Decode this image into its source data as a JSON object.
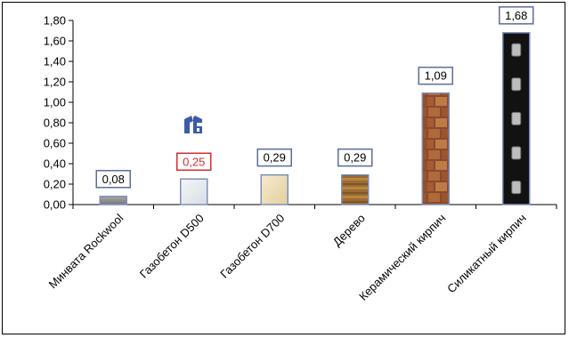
{
  "chart_data": {
    "type": "bar",
    "categories": [
      "Минвата Rockwool",
      "Газобетон D500",
      "Газобетон D700",
      "Дерево",
      "Керамический кирпич",
      "Силикатный кирпич"
    ],
    "values": [
      0.08,
      0.25,
      0.29,
      0.29,
      1.09,
      1.68
    ],
    "value_labels": [
      "0,08",
      "0,25",
      "0,29",
      "0,29",
      "1,09",
      "1,68"
    ],
    "y_ticks": [
      "0,00",
      "0,20",
      "0,40",
      "0,60",
      "0,80",
      "1,00",
      "1,20",
      "1,40",
      "1,60",
      "1,80"
    ],
    "ylim": [
      0,
      1.8
    ],
    "title": "",
    "xlabel": "",
    "ylabel": "",
    "grid": false,
    "legend": "none",
    "bar_fills": [
      "insulation-gray",
      "gas-block-light",
      "gas-block-cream",
      "wood-brown",
      "ceramic-brick-red",
      "silicate-brick-dark"
    ],
    "label_border_colors": [
      "#5b6e9a",
      "#d32f2f",
      "#5b6e9a",
      "#5b6e9a",
      "#5b6e9a",
      "#5b6e9a"
    ],
    "label_text_colors": [
      "#000000",
      "#d32f2f",
      "#000000",
      "#000000",
      "#000000",
      "#000000"
    ],
    "logo_icon": "gb-logo-icon",
    "logo_color": "#3d5aa8"
  }
}
